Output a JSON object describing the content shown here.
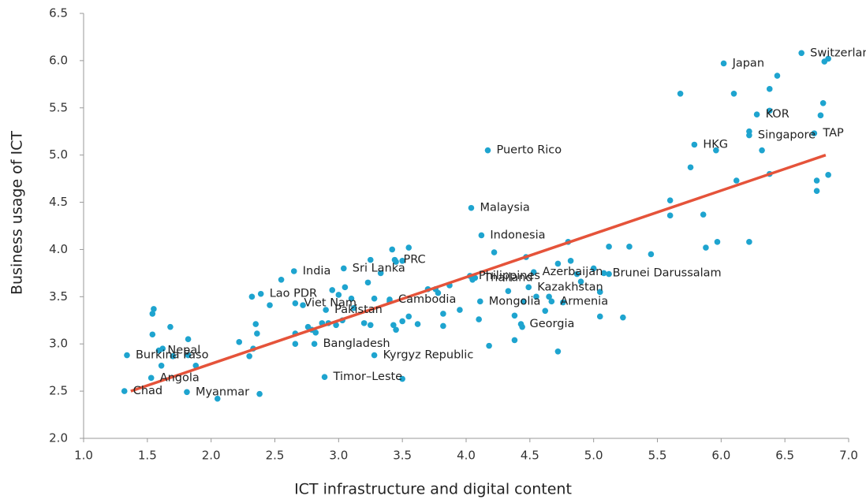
{
  "chart_data": {
    "type": "scatter",
    "xlabel": "ICT infrastructure and digital content",
    "ylabel": "Business usage of ICT",
    "color": "#1ea4cf",
    "xlim": [
      1.0,
      7.0
    ],
    "ylim": [
      2.0,
      6.5
    ],
    "xticks": [
      {
        "value": 1,
        "label": "1.0"
      },
      1.5,
      {
        "value": 2,
        "label": "2.0"
      },
      2.5,
      {
        "value": 3,
        "label": "3.0"
      },
      3.5,
      {
        "value": 4,
        "label": "4.0"
      },
      4.5,
      {
        "value": 5,
        "label": "5.0"
      },
      5.5,
      {
        "value": 6,
        "label": "6.0"
      },
      6.5,
      {
        "value": 7,
        "label": "7.0"
      }
    ],
    "yticks": [
      {
        "value": 2,
        "label": "2.0"
      },
      2.5,
      {
        "value": 3,
        "label": "3.0"
      },
      3.5,
      {
        "value": 4,
        "label": "4.0"
      },
      4.5,
      {
        "value": 5,
        "label": "5.0"
      },
      5.5,
      {
        "value": 6,
        "label": "6.0"
      },
      6.5
    ],
    "labels": [
      "Switzerland",
      "Japan",
      "KOR",
      "TAP",
      "Singapore",
      "HKG",
      "Puerto Rico",
      "Malaysia",
      "Indonesia",
      "PRC",
      "Philippines",
      "Sri Lanka",
      "India",
      "Thailand",
      "Azerbaijan",
      "Kazakhstan",
      "Brunei Darussalam",
      "Lao PDR",
      "Viet Nam",
      "Pakistan",
      "Cambodia",
      "Mongolia",
      "Armenia",
      "Georgia",
      "Bangladesh",
      "Kyrgyz Republic",
      "Nepal",
      "Burkina Faso",
      "Angola",
      "Timor–Leste",
      "Chad",
      "Myanmar",
      null,
      null,
      null,
      null,
      null,
      null,
      null,
      null,
      null,
      null,
      null,
      null,
      null,
      null,
      null,
      null,
      null,
      null,
      null,
      null,
      null,
      null,
      null,
      null,
      null,
      null,
      null,
      null,
      null,
      null,
      null,
      null,
      null,
      null,
      null,
      null,
      null,
      null,
      null,
      null,
      null,
      null,
      null,
      null,
      null,
      null,
      null,
      null,
      null,
      null,
      null,
      null,
      null,
      null,
      null,
      null,
      null,
      null,
      null,
      null,
      null,
      null,
      null,
      null,
      null,
      null,
      null,
      null,
      null,
      null,
      null,
      null,
      null,
      null,
      null,
      null,
      null,
      null,
      null,
      null,
      null,
      null,
      null,
      null,
      null,
      null,
      null,
      null,
      null,
      null,
      null,
      null,
      null,
      null,
      null,
      null,
      null,
      null,
      null,
      null,
      null,
      null,
      null,
      null,
      null,
      null
    ],
    "x": [
      6.63,
      6.02,
      6.28,
      6.73,
      6.22,
      5.79,
      4.17,
      4.04,
      4.12,
      3.44,
      4.03,
      3.04,
      2.65,
      4.07,
      4.53,
      4.49,
      5.08,
      2.39,
      2.66,
      2.9,
      3.4,
      4.11,
      4.67,
      4.43,
      2.81,
      3.28,
      1.59,
      1.34,
      1.53,
      2.89,
      1.32,
      1.81,
      1.55,
      1.54,
      1.54,
      1.68,
      1.62,
      1.82,
      1.61,
      1.7,
      1.82,
      1.88,
      2.05,
      2.22,
      2.3,
      2.33,
      2.35,
      2.36,
      2.32,
      2.46,
      2.55,
      2.38,
      2.66,
      2.66,
      2.72,
      2.76,
      2.79,
      2.82,
      2.87,
      2.95,
      3.05,
      3.0,
      3.03,
      3.1,
      3.12,
      2.92,
      2.98,
      3.2,
      3.25,
      3.23,
      3.25,
      3.33,
      3.28,
      3.4,
      3.42,
      3.45,
      3.5,
      3.55,
      3.43,
      3.45,
      3.5,
      3.55,
      3.62,
      3.7,
      3.76,
      3.78,
      3.82,
      3.82,
      3.95,
      3.87,
      4.05,
      4.1,
      4.18,
      4.22,
      4.33,
      4.38,
      4.44,
      4.45,
      4.47,
      4.38,
      4.55,
      4.62,
      4.65,
      4.72,
      4.76,
      4.8,
      4.82,
      4.87,
      4.9,
      5.0,
      5.05,
      5.12,
      4.72,
      5.05,
      5.23,
      5.12,
      5.28,
      5.45,
      5.6,
      5.6,
      5.68,
      5.76,
      5.86,
      5.88,
      5.97,
      5.96,
      6.1,
      6.12,
      6.22,
      6.22,
      6.32,
      6.38,
      6.38,
      6.38,
      6.44,
      6.75,
      6.75,
      6.8,
      6.84,
      6.78,
      6.81,
      6.84,
      3.5
    ],
    "y": [
      6.08,
      5.97,
      5.43,
      5.23,
      5.21,
      5.11,
      5.05,
      4.44,
      4.15,
      3.89,
      3.72,
      3.8,
      3.77,
      3.7,
      3.76,
      3.6,
      3.75,
      3.53,
      3.43,
      3.36,
      3.47,
      3.45,
      3.45,
      3.21,
      3.0,
      2.88,
      2.93,
      2.88,
      2.64,
      2.65,
      2.5,
      2.49,
      3.37,
      3.32,
      3.1,
      3.18,
      2.95,
      3.05,
      2.77,
      2.87,
      2.88,
      2.77,
      2.42,
      3.02,
      2.87,
      2.95,
      3.21,
      3.11,
      3.5,
      3.41,
      3.68,
      2.47,
      3.11,
      3.0,
      3.41,
      3.18,
      3.15,
      3.12,
      3.22,
      3.57,
      3.6,
      3.52,
      3.25,
      3.48,
      3.38,
      3.22,
      3.2,
      3.22,
      3.2,
      3.65,
      3.89,
      3.75,
      3.48,
      3.45,
      4.0,
      3.87,
      3.88,
      4.02,
      3.2,
      3.15,
      3.24,
      3.29,
      3.21,
      3.58,
      3.58,
      3.54,
      3.32,
      3.19,
      3.36,
      3.62,
      3.68,
      3.26,
      2.98,
      3.97,
      3.56,
      3.3,
      3.18,
      3.45,
      3.92,
      3.04,
      3.5,
      3.35,
      3.5,
      3.85,
      3.44,
      4.08,
      3.88,
      3.74,
      3.66,
      3.8,
      3.55,
      3.74,
      2.92,
      3.29,
      3.28,
      4.03,
      4.03,
      3.95,
      4.52,
      4.36,
      5.65,
      4.87,
      4.37,
      4.02,
      4.08,
      5.05,
      5.65,
      4.73,
      5.25,
      4.08,
      5.05,
      4.8,
      5.47,
      5.7,
      5.84,
      4.62,
      4.73,
      5.55,
      4.79,
      5.42,
      5.99,
      6.02,
      2.63
    ],
    "trendline": {
      "color": "#e5533a",
      "x": [
        1.37,
        6.82
      ],
      "y": [
        2.5,
        5.0
      ]
    }
  }
}
